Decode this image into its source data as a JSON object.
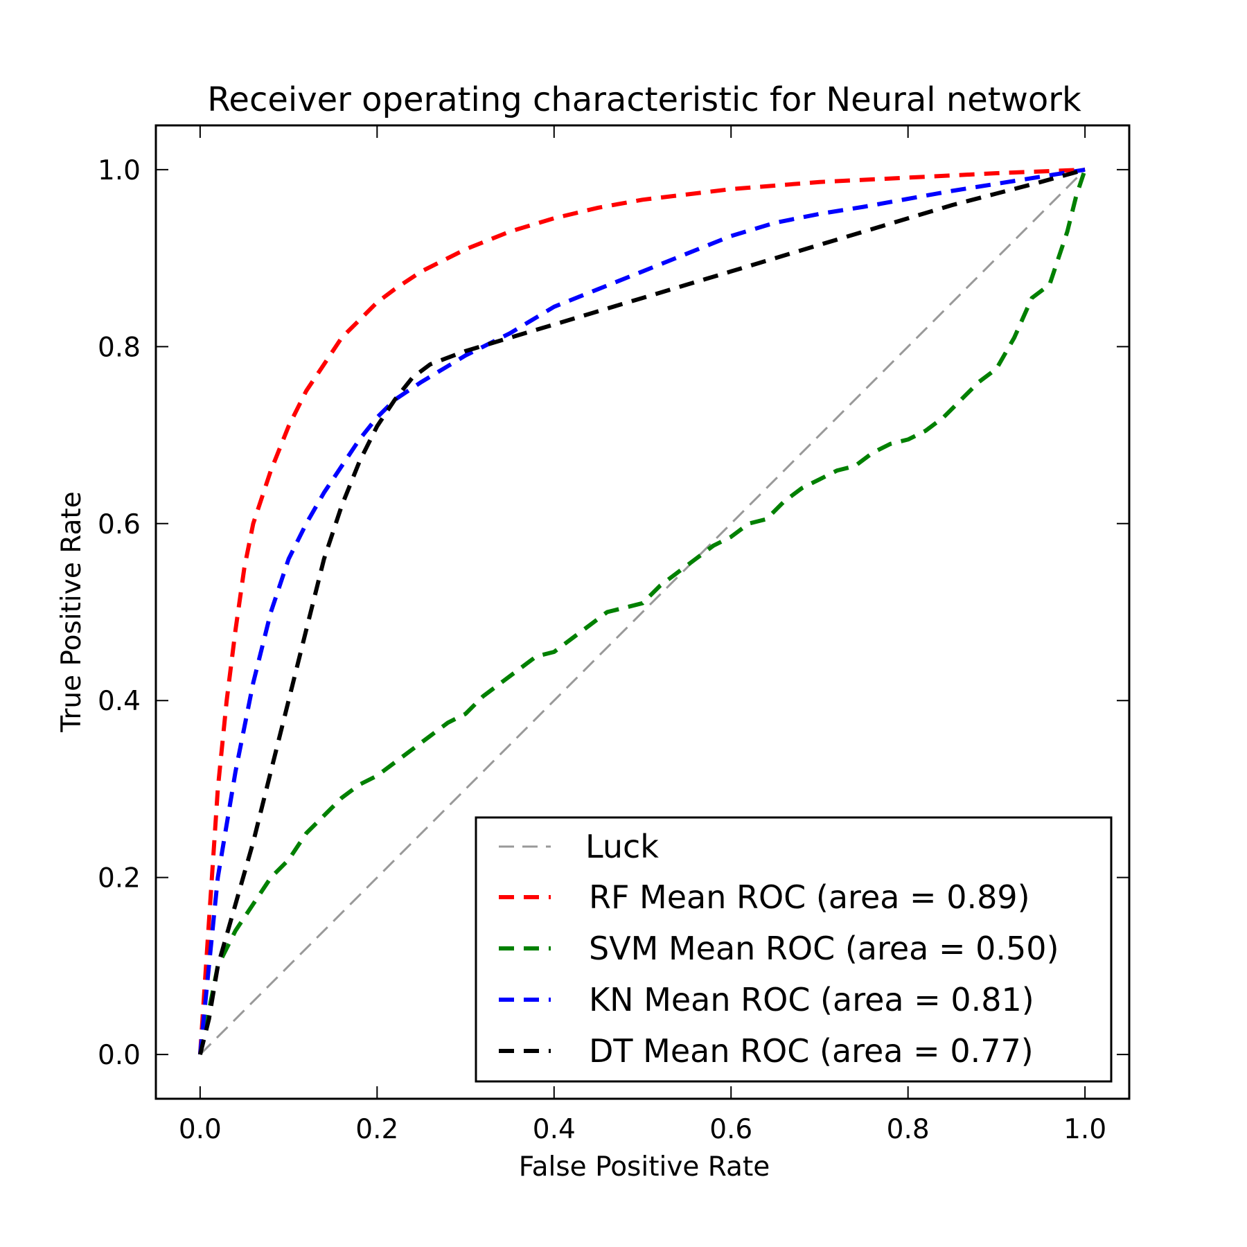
{
  "chart_data": {
    "type": "line",
    "title": "Receiver operating characteristic for Neural network",
    "xlabel": "False Positive Rate",
    "ylabel": "True Positive Rate",
    "xlim": [
      -0.05,
      1.05
    ],
    "ylim": [
      -0.05,
      1.05
    ],
    "xticks": [
      "0.0",
      "0.2",
      "0.4",
      "0.6",
      "0.8",
      "1.0"
    ],
    "yticks": [
      "0.0",
      "0.2",
      "0.4",
      "0.6",
      "0.8",
      "1.0"
    ],
    "grid": false,
    "legend_position": "lower-right",
    "series": [
      {
        "name": "Luck",
        "color": "#999999",
        "style": "thin-dashed",
        "x": [
          0,
          1
        ],
        "y": [
          0,
          1
        ]
      },
      {
        "name": "RF Mean ROC (area = 0.89)",
        "color": "#ff0000",
        "style": "dashed",
        "x": [
          0,
          0.01,
          0.02,
          0.03,
          0.04,
          0.05,
          0.06,
          0.08,
          0.1,
          0.12,
          0.14,
          0.16,
          0.18,
          0.2,
          0.22,
          0.25,
          0.3,
          0.35,
          0.4,
          0.45,
          0.5,
          0.6,
          0.7,
          0.8,
          0.9,
          1.0
        ],
        "y": [
          0,
          0.15,
          0.3,
          0.4,
          0.48,
          0.55,
          0.6,
          0.66,
          0.71,
          0.75,
          0.78,
          0.81,
          0.83,
          0.85,
          0.865,
          0.885,
          0.91,
          0.93,
          0.945,
          0.957,
          0.966,
          0.978,
          0.986,
          0.991,
          0.996,
          1.0
        ]
      },
      {
        "name": "SVM Mean ROC (area = 0.50)",
        "color": "#008000",
        "style": "dashed",
        "x": [
          0,
          0.02,
          0.04,
          0.06,
          0.08,
          0.1,
          0.12,
          0.14,
          0.16,
          0.18,
          0.2,
          0.22,
          0.24,
          0.26,
          0.28,
          0.3,
          0.32,
          0.34,
          0.36,
          0.38,
          0.4,
          0.42,
          0.44,
          0.46,
          0.48,
          0.5,
          0.52,
          0.54,
          0.56,
          0.58,
          0.6,
          0.62,
          0.64,
          0.66,
          0.68,
          0.7,
          0.72,
          0.74,
          0.76,
          0.78,
          0.8,
          0.82,
          0.84,
          0.86,
          0.88,
          0.9,
          0.92,
          0.94,
          0.96,
          0.97,
          0.98,
          0.99,
          1.0
        ],
        "y": [
          0,
          0.1,
          0.14,
          0.17,
          0.2,
          0.22,
          0.25,
          0.27,
          0.29,
          0.305,
          0.315,
          0.33,
          0.345,
          0.36,
          0.375,
          0.385,
          0.405,
          0.42,
          0.435,
          0.45,
          0.455,
          0.47,
          0.485,
          0.5,
          0.505,
          0.51,
          0.53,
          0.545,
          0.56,
          0.575,
          0.585,
          0.6,
          0.605,
          0.625,
          0.64,
          0.65,
          0.66,
          0.665,
          0.68,
          0.69,
          0.695,
          0.705,
          0.72,
          0.74,
          0.76,
          0.775,
          0.81,
          0.855,
          0.87,
          0.9,
          0.93,
          0.97,
          1.0
        ]
      },
      {
        "name": "KN Mean ROC (area = 0.81)",
        "color": "#0000ff",
        "style": "dashed",
        "x": [
          0,
          0.01,
          0.02,
          0.04,
          0.06,
          0.08,
          0.1,
          0.12,
          0.14,
          0.16,
          0.18,
          0.2,
          0.22,
          0.25,
          0.3,
          0.35,
          0.4,
          0.45,
          0.5,
          0.55,
          0.6,
          0.65,
          0.7,
          0.75,
          0.8,
          0.85,
          0.9,
          0.95,
          1.0
        ],
        "y": [
          0,
          0.1,
          0.2,
          0.32,
          0.42,
          0.5,
          0.56,
          0.6,
          0.635,
          0.665,
          0.695,
          0.72,
          0.74,
          0.76,
          0.79,
          0.815,
          0.845,
          0.865,
          0.885,
          0.905,
          0.925,
          0.94,
          0.95,
          0.958,
          0.967,
          0.976,
          0.984,
          0.992,
          1.0
        ]
      },
      {
        "name": "DT Mean ROC (area = 0.77)",
        "color": "#000000",
        "style": "dashed",
        "x": [
          0,
          0.01,
          0.02,
          0.04,
          0.06,
          0.08,
          0.1,
          0.12,
          0.14,
          0.16,
          0.18,
          0.2,
          0.22,
          0.24,
          0.26,
          0.3,
          0.35,
          0.4,
          0.45,
          0.5,
          0.55,
          0.6,
          0.65,
          0.7,
          0.75,
          0.8,
          0.85,
          0.9,
          0.95,
          1.0
        ],
        "y": [
          0,
          0.04,
          0.1,
          0.17,
          0.24,
          0.32,
          0.4,
          0.48,
          0.56,
          0.62,
          0.67,
          0.71,
          0.74,
          0.765,
          0.78,
          0.795,
          0.81,
          0.825,
          0.84,
          0.855,
          0.87,
          0.885,
          0.9,
          0.915,
          0.93,
          0.945,
          0.96,
          0.973,
          0.986,
          1.0
        ]
      }
    ]
  }
}
